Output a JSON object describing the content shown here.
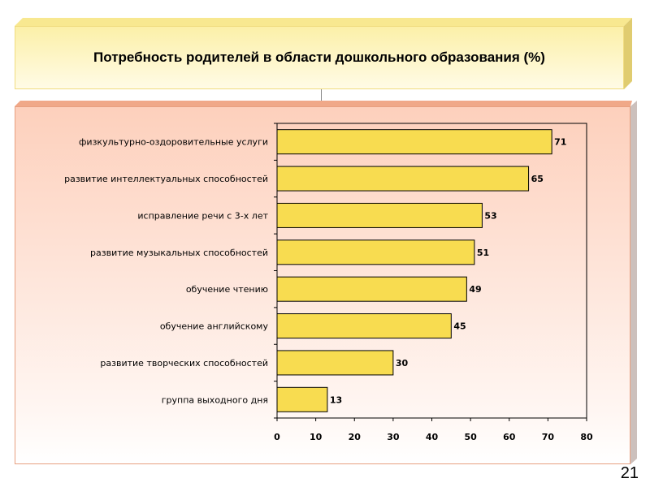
{
  "title": "Потребность родителей в области дошкольного образования (%)",
  "page_number": "21",
  "colors": {
    "bar": "#f8dc50",
    "bar_border": "#000000"
  },
  "chart_data": {
    "type": "bar",
    "orientation": "horizontal",
    "categories": [
      "физкультурно-оздоровительные услуги",
      "развитие интеллектуальных способностей",
      "исправление речи с 3-х лет",
      "развитие музыкальных способностей",
      "обучение чтению",
      "обучение английскому",
      "развитие творческих способностей",
      "группа выходного дня"
    ],
    "values": [
      71,
      65,
      53,
      51,
      49,
      45,
      30,
      13
    ],
    "xlim": [
      0,
      80
    ],
    "xticks": [
      0,
      10,
      20,
      30,
      40,
      50,
      60,
      70,
      80
    ],
    "grid": false,
    "legend": "none"
  }
}
